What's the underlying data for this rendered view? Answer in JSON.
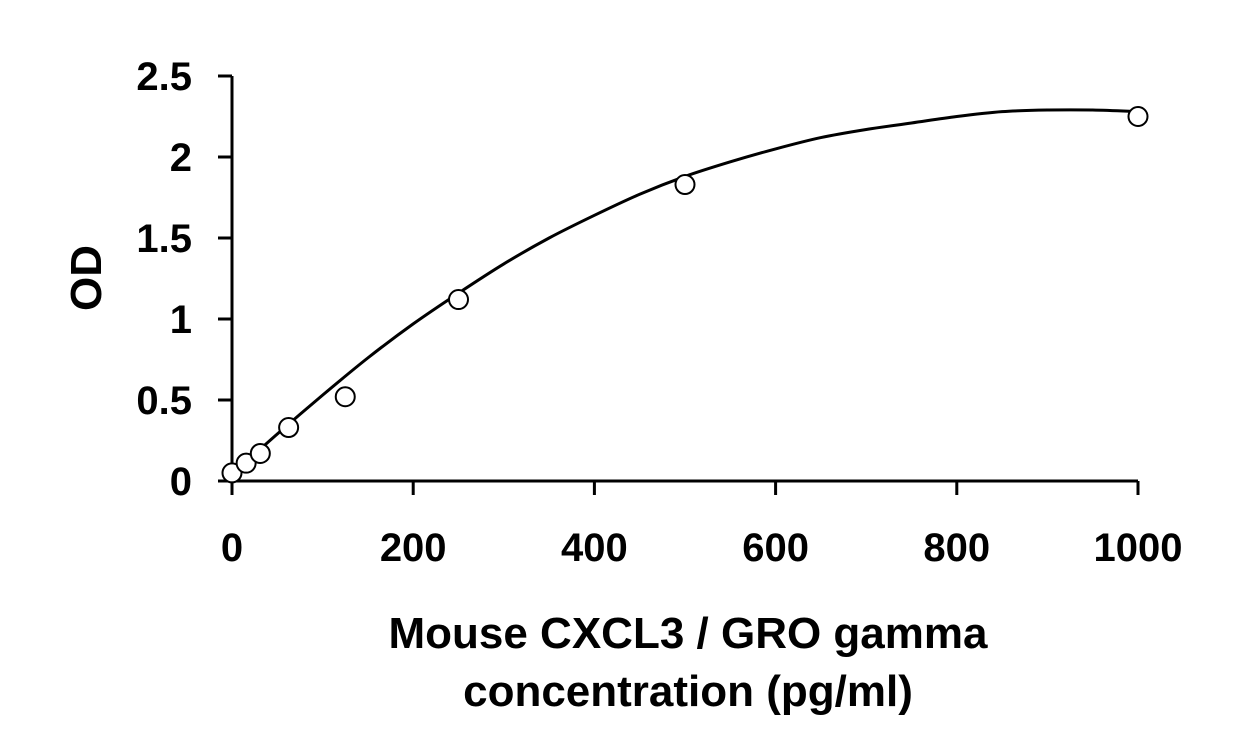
{
  "chart_data": {
    "type": "scatter",
    "title": "",
    "xlabel_lines": [
      "Mouse CXCL3 / GRO gamma",
      "concentration (pg/ml)"
    ],
    "ylabel": "OD",
    "xlim": [
      0,
      1000
    ],
    "ylim": [
      0,
      2.5
    ],
    "x_ticks": [
      0,
      200,
      400,
      600,
      800,
      1000
    ],
    "x_tick_labels": [
      "0",
      "200",
      "400",
      "600",
      "800",
      "1000"
    ],
    "y_ticks": [
      0,
      0.5,
      1,
      1.5,
      2,
      2.5
    ],
    "y_tick_labels": [
      "0",
      "0.5",
      "1",
      "1.5",
      "2",
      "2.5"
    ],
    "grid": false,
    "legend": "none",
    "colors": {
      "axis": "#000000",
      "marker_stroke": "#000000",
      "marker_fill": "#ffffff",
      "curve": "#000000"
    },
    "series": [
      {
        "marker": "open-circle",
        "x": [
          0,
          15.6,
          31.25,
          62.5,
          125,
          250,
          500,
          1000
        ],
        "y": [
          0.05,
          0.11,
          0.17,
          0.33,
          0.52,
          1.12,
          1.83,
          2.25
        ]
      }
    ],
    "fit_curve": {
      "kind": "polynomial-trendline",
      "x_range": [
        0,
        1000
      ],
      "points": [
        [
          0,
          0.04
        ],
        [
          50,
          0.29
        ],
        [
          100,
          0.53
        ],
        [
          150,
          0.76
        ],
        [
          200,
          0.97
        ],
        [
          250,
          1.16
        ],
        [
          300,
          1.34
        ],
        [
          350,
          1.5
        ],
        [
          400,
          1.64
        ],
        [
          450,
          1.77
        ],
        [
          500,
          1.88
        ],
        [
          550,
          1.97
        ],
        [
          600,
          2.05
        ],
        [
          650,
          2.12
        ],
        [
          700,
          2.17
        ],
        [
          750,
          2.21
        ],
        [
          800,
          2.25
        ],
        [
          850,
          2.28
        ],
        [
          900,
          2.29
        ],
        [
          950,
          2.29
        ],
        [
          1000,
          2.28
        ]
      ]
    }
  }
}
